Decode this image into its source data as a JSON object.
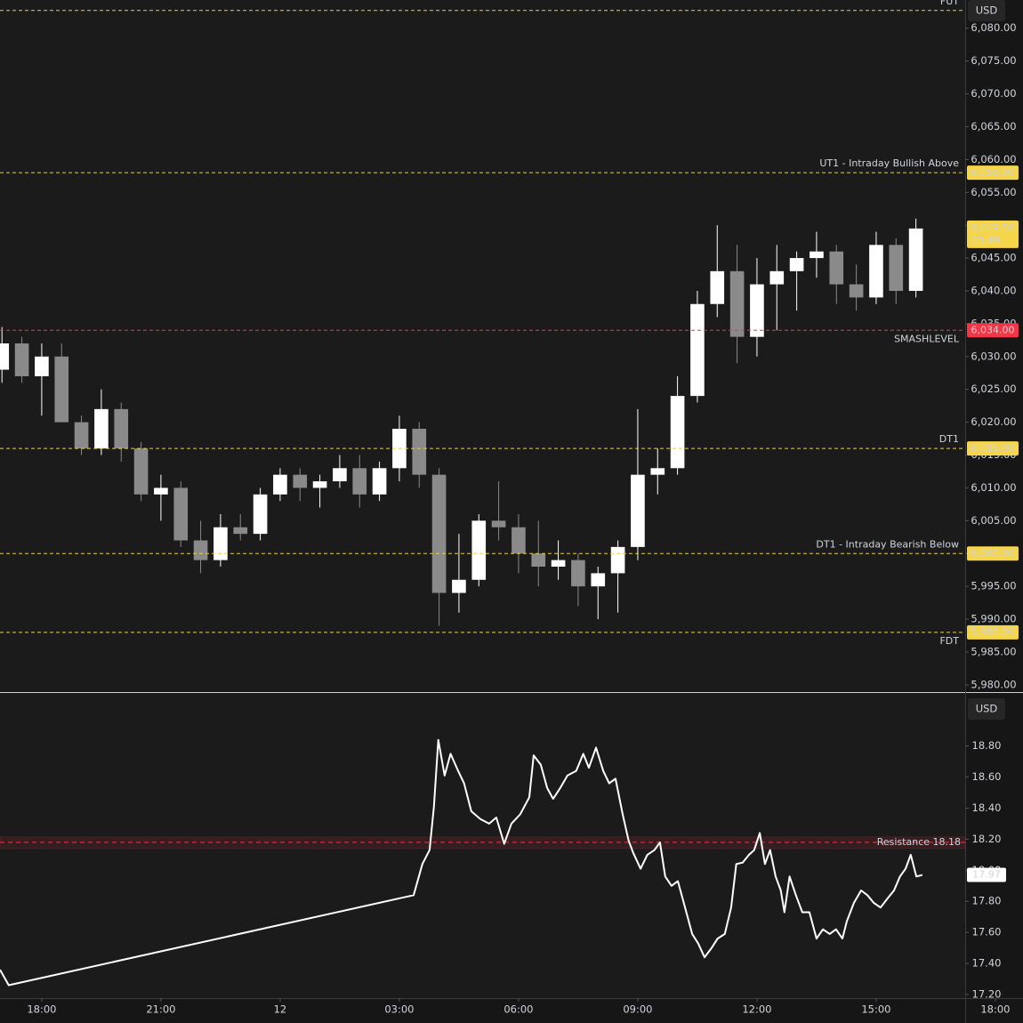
{
  "chart_data": [
    {
      "type": "candlestick",
      "currency": "USD",
      "x": [
        -1,
        -0.5,
        0,
        0.5,
        1,
        1.5,
        2,
        2.5,
        3,
        3.5,
        4,
        4.5,
        5,
        5.5,
        6,
        6.5,
        7,
        7.5,
        8,
        8.5,
        9,
        9.5,
        10,
        10.5,
        11,
        11.5,
        12,
        12.5,
        13,
        13.5,
        14,
        14.5,
        15,
        15.5,
        16,
        16.5,
        17,
        17.5,
        18,
        18.5,
        19,
        19.5,
        20,
        20.5,
        21,
        21.5,
        22
      ],
      "open": [
        6028,
        6032,
        6027,
        6030,
        6020,
        6016,
        6022,
        6016,
        6009,
        6010,
        6002,
        5999,
        6004,
        6003,
        6009,
        6012,
        6010,
        6011,
        6013,
        6009,
        6013,
        6019,
        6012,
        5994,
        5996,
        6005,
        6004,
        6000,
        5998,
        5999,
        5995,
        5997,
        6001,
        6012,
        6013,
        6024,
        6038,
        6043,
        6033,
        6041,
        6043,
        6045,
        6046,
        6041,
        6039,
        6047,
        6040
      ],
      "high": [
        6034.5,
        6033,
        6032,
        6032,
        6021,
        6025,
        6023,
        6017,
        6012,
        6011,
        6005,
        6006,
        6006,
        6010,
        6013,
        6013,
        6012,
        6015,
        6015,
        6014,
        6021,
        6020,
        6013,
        6003,
        6006,
        6011,
        6006,
        6005,
        6002,
        6000,
        5998,
        6002,
        6022,
        6016,
        6027,
        6040,
        6050,
        6047,
        6045,
        6047,
        6046,
        6049,
        6047,
        6044,
        6049,
        6048,
        6051
      ],
      "low": [
        6026,
        6026,
        6021,
        6020,
        6015,
        6015,
        6014,
        6008,
        6005,
        6001,
        5997,
        5998,
        6002,
        6002,
        6008,
        6008,
        6007,
        6010,
        6007,
        6008,
        6011,
        6010,
        5989,
        5991,
        5995,
        6002,
        5997,
        5995,
        5996,
        5992,
        5990,
        5991,
        5999,
        6009,
        6012,
        6023,
        6036,
        6029,
        6030,
        6034,
        6037,
        6042,
        6038,
        6037,
        6038,
        6038,
        6039
      ],
      "close": [
        6032,
        6027,
        6030,
        6020,
        6016,
        6022,
        6016,
        6009,
        6010,
        6002,
        5999,
        6004,
        6003,
        6009,
        6012,
        6010,
        6011,
        6013,
        6009,
        6013,
        6019,
        6012,
        5994,
        5996,
        6005,
        6004,
        6000,
        5998,
        5999,
        5995,
        5997,
        6001,
        6012,
        6013,
        6024,
        6038,
        6043,
        6033,
        6041,
        6043,
        6045,
        6046,
        6041,
        6039,
        6047,
        6040,
        6049.5
      ],
      "up_color": "#ffffff",
      "down_color": "#8a8a8a",
      "xlim": [
        -1.05,
        23.24
      ],
      "ylim": [
        5978.9,
        6084.3
      ],
      "yticks": [
        {
          "value": 5980,
          "label": "5,980.00"
        },
        {
          "value": 5985,
          "label": "5,985.00"
        },
        {
          "value": 5990,
          "label": "5,990.00"
        },
        {
          "value": 5995,
          "label": "5,995.00"
        },
        {
          "value": 6000,
          "label": "6,000.00"
        },
        {
          "value": 6005,
          "label": "6,005.00"
        },
        {
          "value": 6010,
          "label": "6,010.00"
        },
        {
          "value": 6015,
          "label": "6,015.00"
        },
        {
          "value": 6020,
          "label": "6,020.00"
        },
        {
          "value": 6025,
          "label": "6,025.00"
        },
        {
          "value": 6030,
          "label": "6,030.00"
        },
        {
          "value": 6035,
          "label": "6,035.00"
        },
        {
          "value": 6040,
          "label": "6,040.00"
        },
        {
          "value": 6045,
          "label": "6,045.00"
        },
        {
          "value": 6050,
          "label": "6,050.00"
        },
        {
          "value": 6055,
          "label": "6,055.00"
        },
        {
          "value": 6060,
          "label": "6,060.00"
        },
        {
          "value": 6065,
          "label": "6,065.00"
        },
        {
          "value": 6070,
          "label": "6,070.00"
        },
        {
          "value": 6075,
          "label": "6,075.00"
        },
        {
          "value": 6080,
          "label": "6,080.00"
        }
      ],
      "levels": [
        {
          "value": 6082.7,
          "name": "FUT",
          "color": "#e8cf4a",
          "text_side": "above"
        },
        {
          "value": 6058,
          "label": "6,058.00",
          "name": "UT1 - Intraday Bullish Above",
          "color": "#e8cf4a",
          "text_side": "above"
        },
        {
          "value": 6034,
          "label": "6,034.00",
          "name": "SMASHLEVEL",
          "color": "#f23645",
          "text_side": "below"
        },
        {
          "value": 6016,
          "label": "6,016.00",
          "name": "DT1",
          "color": "#e8cf4a",
          "text_side": "above"
        },
        {
          "value": 6000,
          "label": "6,000.00",
          "name": "DT1 - Intraday Bearish Below",
          "color": "#e8cf4a",
          "text_side": "above"
        },
        {
          "value": 5988,
          "label": "5,988.00",
          "name": "FDT",
          "color": "#e8cf4a",
          "text_side": "below"
        }
      ],
      "last_price": {
        "value": 6049.5,
        "label": "6,049.50"
      },
      "countdown": "03:49",
      "last_color": "#f5d54a"
    },
    {
      "type": "line",
      "currency": "USD",
      "color": "#ffffff",
      "x": [
        -1.05,
        -0.83,
        9.36,
        9.58,
        9.76,
        9.87,
        9.98,
        10.14,
        10.29,
        10.48,
        10.63,
        10.81,
        11.04,
        11.26,
        11.44,
        11.64,
        11.82,
        12.04,
        12.27,
        12.38,
        12.56,
        12.72,
        12.87,
        13.05,
        13.23,
        13.45,
        13.63,
        13.77,
        13.95,
        14.13,
        14.28,
        14.44,
        14.62,
        14.77,
        14.89,
        15.07,
        15.24,
        15.42,
        15.56,
        15.69,
        15.85,
        16.01,
        16.19,
        16.37,
        16.52,
        16.68,
        16.86,
        17.01,
        17.19,
        17.35,
        17.48,
        17.64,
        17.8,
        17.93,
        18.07,
        18.2,
        18.33,
        18.47,
        18.6,
        18.69,
        18.82,
        18.98,
        19.14,
        19.32,
        19.5,
        19.66,
        19.83,
        19.99,
        20.15,
        20.26,
        20.44,
        20.62,
        20.78,
        20.94,
        21.11,
        21.29,
        21.45,
        21.6,
        21.74,
        21.87,
        22.01,
        22.16
      ],
      "values": [
        17.36,
        17.26,
        17.84,
        18.04,
        18.13,
        18.41,
        18.84,
        18.61,
        18.75,
        18.64,
        18.56,
        18.38,
        18.33,
        18.3,
        18.34,
        18.17,
        18.3,
        18.36,
        18.47,
        18.74,
        18.68,
        18.53,
        18.46,
        18.53,
        18.61,
        18.64,
        18.75,
        18.66,
        18.79,
        18.64,
        18.56,
        18.59,
        18.36,
        18.19,
        18.11,
        18.01,
        18.1,
        18.13,
        18.18,
        17.96,
        17.9,
        17.93,
        17.76,
        17.59,
        17.53,
        17.44,
        17.5,
        17.56,
        17.59,
        17.76,
        18.04,
        18.05,
        18.1,
        18.13,
        18.24,
        18.04,
        18.13,
        17.96,
        17.87,
        17.73,
        17.96,
        17.84,
        17.73,
        17.73,
        17.56,
        17.62,
        17.59,
        17.62,
        17.56,
        17.67,
        17.79,
        17.87,
        17.84,
        17.79,
        17.76,
        17.82,
        17.87,
        17.96,
        18.01,
        18.1,
        17.96,
        17.97
      ],
      "xlim": [
        -1.05,
        23.24
      ],
      "ylim": [
        17.177,
        19.136
      ],
      "yticks": [
        {
          "value": 17.2,
          "label": "17.20"
        },
        {
          "value": 17.4,
          "label": "17.40"
        },
        {
          "value": 17.6,
          "label": "17.60"
        },
        {
          "value": 17.8,
          "label": "17.80"
        },
        {
          "value": 18,
          "label": "18.00"
        },
        {
          "value": 18.2,
          "label": "18.20"
        },
        {
          "value": 18.4,
          "label": "18.40"
        },
        {
          "value": 18.6,
          "label": "18.60"
        },
        {
          "value": 18.8,
          "label": "18.80"
        }
      ],
      "xticks": [
        {
          "value": 0,
          "label": "18:00"
        },
        {
          "value": 3,
          "label": "21:00"
        },
        {
          "value": 6,
          "label": "12"
        },
        {
          "value": 9,
          "label": "03:00"
        },
        {
          "value": 12,
          "label": "06:00"
        },
        {
          "value": 15,
          "label": "09:00"
        },
        {
          "value": 18,
          "label": "12:00"
        },
        {
          "value": 21,
          "label": "15:00"
        },
        {
          "value": 24,
          "label": "18:00"
        }
      ],
      "resistance": {
        "value": 18.18,
        "name": "Resistance 18.18",
        "color": "#f23645"
      },
      "last_value": 17.97
    }
  ]
}
